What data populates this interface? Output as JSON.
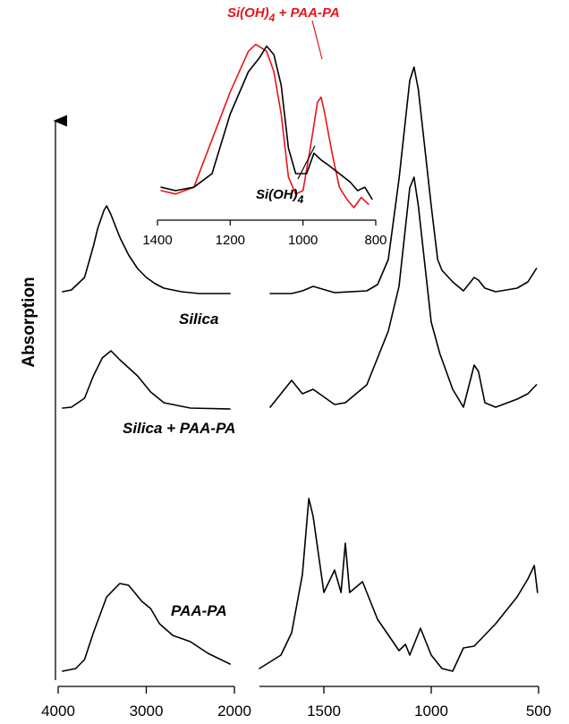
{
  "chart_data": [
    {
      "type": "line",
      "ylabel": "Absorption",
      "x_segments": [
        {
          "range": [
            4000,
            2000
          ],
          "ticks": [
            "4000",
            "3000",
            "2000"
          ]
        },
        {
          "range": [
            1800,
            500
          ],
          "ticks": [
            "1500",
            "1000",
            "500"
          ]
        }
      ],
      "series": [
        {
          "name": "Silica",
          "color": "#000000",
          "points": [
            [
              3950,
              0.04
            ],
            [
              3850,
              0.06
            ],
            [
              3700,
              0.2
            ],
            [
              3600,
              0.55
            ],
            [
              3550,
              0.75
            ],
            [
              3480,
              0.95
            ],
            [
              3450,
              1.0
            ],
            [
              3400,
              0.9
            ],
            [
              3300,
              0.65
            ],
            [
              3200,
              0.45
            ],
            [
              3100,
              0.3
            ],
            [
              3000,
              0.2
            ],
            [
              2900,
              0.13
            ],
            [
              2800,
              0.08
            ],
            [
              2600,
              0.04
            ],
            [
              2400,
              0.02
            ],
            [
              2050,
              0.02
            ],
            [
              1750,
              0.02
            ],
            [
              1650,
              0.02
            ],
            [
              1600,
              0.05
            ],
            [
              1550,
              0.1
            ],
            [
              1450,
              0.03
            ],
            [
              1300,
              0.05
            ],
            [
              1250,
              0.12
            ],
            [
              1200,
              0.4
            ],
            [
              1150,
              1.3
            ],
            [
              1100,
              2.4
            ],
            [
              1080,
              2.55
            ],
            [
              1060,
              2.3
            ],
            [
              1000,
              1.0
            ],
            [
              970,
              0.4
            ],
            [
              950,
              0.28
            ],
            [
              900,
              0.15
            ],
            [
              850,
              0.05
            ],
            [
              800,
              0.2
            ],
            [
              780,
              0.17
            ],
            [
              750,
              0.08
            ],
            [
              700,
              0.04
            ],
            [
              600,
              0.08
            ],
            [
              550,
              0.15
            ],
            [
              510,
              0.3
            ]
          ]
        },
        {
          "name": "Silica + PAA-PA",
          "color": "#000000",
          "points": [
            [
              3950,
              0.04
            ],
            [
              3850,
              0.05
            ],
            [
              3700,
              0.15
            ],
            [
              3600,
              0.4
            ],
            [
              3500,
              0.6
            ],
            [
              3400,
              0.68
            ],
            [
              3300,
              0.58
            ],
            [
              3100,
              0.4
            ],
            [
              2950,
              0.22
            ],
            [
              2800,
              0.1
            ],
            [
              2500,
              0.04
            ],
            [
              2050,
              0.03
            ],
            [
              1750,
              0.05
            ],
            [
              1700,
              0.2
            ],
            [
              1650,
              0.35
            ],
            [
              1600,
              0.2
            ],
            [
              1550,
              0.25
            ],
            [
              1450,
              0.08
            ],
            [
              1400,
              0.1
            ],
            [
              1300,
              0.3
            ],
            [
              1250,
              0.6
            ],
            [
              1200,
              0.9
            ],
            [
              1150,
              1.4
            ],
            [
              1100,
              2.5
            ],
            [
              1080,
              2.62
            ],
            [
              1060,
              2.3
            ],
            [
              1000,
              1.0
            ],
            [
              960,
              0.65
            ],
            [
              900,
              0.25
            ],
            [
              850,
              0.05
            ],
            [
              800,
              0.52
            ],
            [
              780,
              0.45
            ],
            [
              750,
              0.1
            ],
            [
              700,
              0.05
            ],
            [
              600,
              0.14
            ],
            [
              550,
              0.2
            ],
            [
              510,
              0.3
            ]
          ]
        },
        {
          "name": "PAA-PA",
          "color": "#000000",
          "points": [
            [
              3950,
              0.02
            ],
            [
              3800,
              0.05
            ],
            [
              3700,
              0.15
            ],
            [
              3600,
              0.45
            ],
            [
              3450,
              0.85
            ],
            [
              3300,
              1.0
            ],
            [
              3200,
              0.98
            ],
            [
              3050,
              0.8
            ],
            [
              2950,
              0.72
            ],
            [
              2850,
              0.55
            ],
            [
              2700,
              0.42
            ],
            [
              2500,
              0.35
            ],
            [
              2300,
              0.22
            ],
            [
              2050,
              0.1
            ],
            [
              1800,
              0.05
            ],
            [
              1700,
              0.2
            ],
            [
              1650,
              0.45
            ],
            [
              1600,
              1.1
            ],
            [
              1570,
              1.95
            ],
            [
              1550,
              1.75
            ],
            [
              1500,
              0.9
            ],
            [
              1450,
              1.15
            ],
            [
              1420,
              0.9
            ],
            [
              1400,
              1.45
            ],
            [
              1380,
              0.9
            ],
            [
              1320,
              1.02
            ],
            [
              1250,
              0.6
            ],
            [
              1150,
              0.25
            ],
            [
              1120,
              0.32
            ],
            [
              1100,
              0.2
            ],
            [
              1050,
              0.5
            ],
            [
              1000,
              0.2
            ],
            [
              950,
              0.05
            ],
            [
              900,
              0.02
            ],
            [
              850,
              0.28
            ],
            [
              800,
              0.3
            ],
            [
              700,
              0.55
            ],
            [
              600,
              0.85
            ],
            [
              550,
              1.05
            ],
            [
              520,
              1.2
            ],
            [
              505,
              0.9
            ]
          ]
        }
      ]
    },
    {
      "type": "line",
      "inset": true,
      "x_range": [
        1400,
        800
      ],
      "x_ticks": [
        "1400",
        "1200",
        "1000",
        "800"
      ],
      "series": [
        {
          "name": "Si(OH) 4 + PAA-PA",
          "color": "#e8141a",
          "points": [
            [
              1390,
              0.1
            ],
            [
              1350,
              0.08
            ],
            [
              1300,
              0.12
            ],
            [
              1250,
              0.4
            ],
            [
              1200,
              0.68
            ],
            [
              1150,
              0.92
            ],
            [
              1130,
              0.96
            ],
            [
              1100,
              0.92
            ],
            [
              1080,
              0.8
            ],
            [
              1060,
              0.55
            ],
            [
              1040,
              0.18
            ],
            [
              1020,
              0.08
            ],
            [
              1000,
              0.1
            ],
            [
              980,
              0.35
            ],
            [
              960,
              0.62
            ],
            [
              950,
              0.65
            ],
            [
              940,
              0.55
            ],
            [
              920,
              0.32
            ],
            [
              900,
              0.12
            ],
            [
              880,
              0.05
            ],
            [
              860,
              0.0
            ],
            [
              840,
              0.06
            ],
            [
              820,
              0.02
            ]
          ]
        },
        {
          "name": "Si(OH) 4",
          "color": "#000000",
          "points": [
            [
              1390,
              0.12
            ],
            [
              1350,
              0.1
            ],
            [
              1300,
              0.12
            ],
            [
              1250,
              0.2
            ],
            [
              1200,
              0.55
            ],
            [
              1150,
              0.8
            ],
            [
              1120,
              0.88
            ],
            [
              1100,
              0.95
            ],
            [
              1080,
              0.9
            ],
            [
              1060,
              0.72
            ],
            [
              1040,
              0.35
            ],
            [
              1020,
              0.2
            ],
            [
              990,
              0.2
            ],
            [
              970,
              0.32
            ],
            [
              950,
              0.28
            ],
            [
              930,
              0.25
            ],
            [
              900,
              0.2
            ],
            [
              870,
              0.15
            ],
            [
              850,
              0.1
            ],
            [
              830,
              0.12
            ],
            [
              810,
              0.05
            ]
          ]
        }
      ]
    }
  ],
  "labels": {
    "ylabel": "Absorption",
    "silica": "Silica",
    "silica_paa": "Silica + PAA-PA",
    "paa": "PAA-PA",
    "inset_red": "Si(OH)",
    "inset_red_sub": "4",
    "inset_red_tail": " + PAA-PA",
    "inset_black": "Si(OH)",
    "inset_black_sub": "4"
  }
}
